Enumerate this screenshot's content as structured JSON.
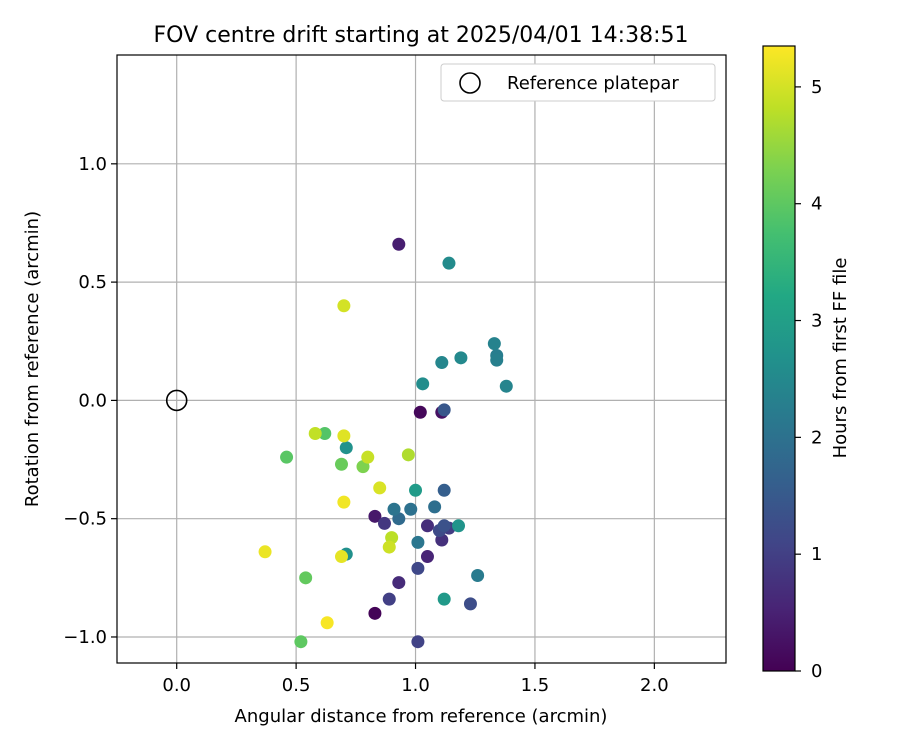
{
  "chart_data": {
    "type": "scatter",
    "title": "FOV centre drift starting at 2025/04/01 14:38:51",
    "xlabel": "Angular distance from reference (arcmin)",
    "ylabel": "Rotation from reference (arcmin)",
    "xlim": [
      -0.25,
      2.3
    ],
    "ylim": [
      -1.11,
      1.46
    ],
    "xticks": [
      0.0,
      0.5,
      1.0,
      1.5,
      2.0
    ],
    "xtick_labels": [
      "0.0",
      "0.5",
      "1.0",
      "1.5",
      "2.0"
    ],
    "yticks": [
      -1.0,
      -0.5,
      0.0,
      0.5,
      1.0
    ],
    "ytick_labels": [
      "−1.0",
      "−0.5",
      "0.0",
      "0.5",
      "1.0"
    ],
    "grid": true,
    "legend": {
      "entries": [
        "Reference platepar"
      ],
      "placement": "upper right"
    },
    "reference_point": {
      "x": 0.0,
      "y": 0.0
    },
    "colorbar": {
      "label": "Hours from first FF file",
      "colormap": "viridis",
      "range": [
        0,
        5.35
      ],
      "ticks": [
        0,
        1,
        2,
        3,
        4,
        5
      ],
      "tick_labels": [
        "0",
        "1",
        "2",
        "3",
        "4",
        "5"
      ]
    },
    "points": [
      {
        "x": 0.83,
        "y": -0.9,
        "c": 0.05
      },
      {
        "x": 1.02,
        "y": -0.05,
        "c": 0.1
      },
      {
        "x": 1.11,
        "y": -0.05,
        "c": 0.25
      },
      {
        "x": 0.83,
        "y": -0.49,
        "c": 0.35
      },
      {
        "x": 0.93,
        "y": 0.66,
        "c": 0.45
      },
      {
        "x": 1.05,
        "y": -0.66,
        "c": 0.55
      },
      {
        "x": 0.93,
        "y": -0.77,
        "c": 0.65
      },
      {
        "x": 1.05,
        "y": -0.53,
        "c": 0.7
      },
      {
        "x": 1.11,
        "y": -0.59,
        "c": 0.75
      },
      {
        "x": 0.87,
        "y": -0.52,
        "c": 0.85
      },
      {
        "x": 1.14,
        "y": -0.54,
        "c": 0.95
      },
      {
        "x": 0.89,
        "y": -0.84,
        "c": 1.0
      },
      {
        "x": 1.01,
        "y": -1.02,
        "c": 1.05
      },
      {
        "x": 1.01,
        "y": -0.71,
        "c": 1.15
      },
      {
        "x": 1.1,
        "y": -0.55,
        "c": 1.2
      },
      {
        "x": 1.23,
        "y": -0.86,
        "c": 1.25
      },
      {
        "x": 1.12,
        "y": -0.53,
        "c": 1.35
      },
      {
        "x": 1.12,
        "y": -0.04,
        "c": 1.45
      },
      {
        "x": 1.12,
        "y": -0.38,
        "c": 1.6
      },
      {
        "x": 0.93,
        "y": -0.5,
        "c": 1.85
      },
      {
        "x": 1.08,
        "y": -0.45,
        "c": 1.95
      },
      {
        "x": 0.98,
        "y": -0.46,
        "c": 2.0
      },
      {
        "x": 0.91,
        "y": -0.46,
        "c": 2.05
      },
      {
        "x": 1.01,
        "y": -0.6,
        "c": 2.1
      },
      {
        "x": 1.26,
        "y": -0.74,
        "c": 2.2
      },
      {
        "x": 1.34,
        "y": 0.19,
        "c": 2.25
      },
      {
        "x": 1.34,
        "y": 0.17,
        "c": 2.3
      },
      {
        "x": 1.33,
        "y": 0.24,
        "c": 2.35
      },
      {
        "x": 1.38,
        "y": 0.06,
        "c": 2.4
      },
      {
        "x": 1.11,
        "y": 0.16,
        "c": 2.45
      },
      {
        "x": 1.19,
        "y": 0.18,
        "c": 2.5
      },
      {
        "x": 1.14,
        "y": 0.58,
        "c": 2.55
      },
      {
        "x": 1.03,
        "y": 0.07,
        "c": 2.6
      },
      {
        "x": 0.71,
        "y": -0.65,
        "c": 2.65
      },
      {
        "x": 0.71,
        "y": -0.2,
        "c": 2.7
      },
      {
        "x": 1.18,
        "y": -0.53,
        "c": 2.75
      },
      {
        "x": 1.12,
        "y": -0.84,
        "c": 2.85
      },
      {
        "x": 1.0,
        "y": -0.38,
        "c": 2.9
      },
      {
        "x": 0.62,
        "y": -0.14,
        "c": 3.9
      },
      {
        "x": 0.46,
        "y": -0.24,
        "c": 3.95
      },
      {
        "x": 0.52,
        "y": -1.02,
        "c": 4.0
      },
      {
        "x": 0.54,
        "y": -0.75,
        "c": 4.05
      },
      {
        "x": 0.69,
        "y": -0.27,
        "c": 4.1
      },
      {
        "x": 0.78,
        "y": -0.28,
        "c": 4.3
      },
      {
        "x": 0.97,
        "y": -0.23,
        "c": 4.7
      },
      {
        "x": 0.9,
        "y": -0.58,
        "c": 4.8
      },
      {
        "x": 0.58,
        "y": -0.14,
        "c": 4.85
      },
      {
        "x": 0.8,
        "y": -0.24,
        "c": 4.9
      },
      {
        "x": 0.89,
        "y": -0.62,
        "c": 4.95
      },
      {
        "x": 0.7,
        "y": 0.4,
        "c": 5.0
      },
      {
        "x": 0.85,
        "y": -0.37,
        "c": 5.05
      },
      {
        "x": 0.7,
        "y": -0.15,
        "c": 5.1
      },
      {
        "x": 0.69,
        "y": -0.66,
        "c": 5.15
      },
      {
        "x": 0.37,
        "y": -0.64,
        "c": 5.2
      },
      {
        "x": 0.7,
        "y": -0.43,
        "c": 5.25
      },
      {
        "x": 0.63,
        "y": -0.94,
        "c": 5.3
      }
    ]
  }
}
